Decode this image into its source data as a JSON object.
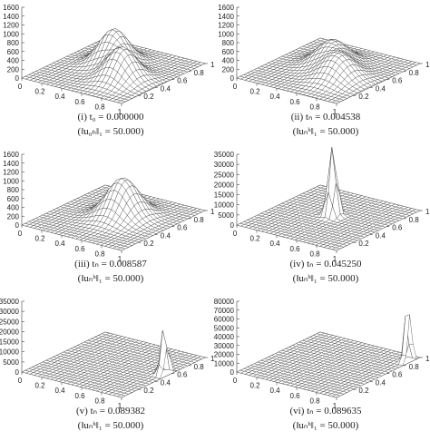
{
  "panels": [
    {
      "caption": "(i) t₀ = 0.000000",
      "norm": "(‖u₀ₕ‖₁ = 50.000)",
      "zticks": [
        0,
        200,
        400,
        600,
        800,
        1000,
        1200,
        1400,
        1600
      ],
      "xticks": [
        0,
        0.2,
        0.4,
        0.6,
        0.8,
        1
      ],
      "yticks": [
        0.2,
        0.4,
        0.6,
        0.8,
        1
      ]
    },
    {
      "caption": "(ii) tₙ = 0.004538",
      "norm": "(‖uₙʰ‖₁ = 50.000)",
      "zticks": [
        0,
        200,
        400,
        600,
        800,
        1000,
        1200,
        1400,
        1600
      ],
      "xticks": [
        0,
        0.2,
        0.4,
        0.6,
        0.8,
        1
      ],
      "yticks": [
        0.2,
        0.4,
        0.6,
        0.8,
        1
      ]
    },
    {
      "caption": "(iii) tₙ = 0.008587",
      "norm": "(‖uₙʰ‖₁ = 50.000)",
      "zticks": [
        0,
        200,
        400,
        600,
        800,
        1000,
        1200,
        1400,
        1600
      ],
      "xticks": [
        0,
        0.2,
        0.4,
        0.6,
        0.8,
        1
      ],
      "yticks": [
        0.2,
        0.4,
        0.6,
        0.8,
        1
      ]
    },
    {
      "caption": "(iv) tₙ = 0.045250",
      "norm": "(‖uₙʰ‖₁ = 50.000)",
      "zticks": [
        0,
        5000,
        10000,
        15000,
        20000,
        25000,
        30000,
        35000
      ],
      "xticks": [
        0,
        0.2,
        0.4,
        0.6,
        0.8,
        1
      ],
      "yticks": [
        0.2,
        0.4,
        0.6,
        0.8,
        1
      ]
    },
    {
      "caption": "(v) tₙ = 0.089382",
      "norm": "(‖uₙʰ‖₁ = 50.000)",
      "zticks": [
        0,
        5000,
        10000,
        15000,
        20000,
        25000,
        30000,
        35000
      ],
      "xticks": [
        0,
        0.2,
        0.4,
        0.6,
        0.8,
        1
      ],
      "yticks": [
        0.2,
        0.4,
        0.6,
        0.8,
        1
      ]
    },
    {
      "caption": "(vi) tₙ = 0.089635",
      "norm": "(‖uₙʰ‖₁ = 50.000)",
      "zticks": [
        0,
        10000,
        20000,
        30000,
        40000,
        50000,
        60000,
        70000,
        80000
      ],
      "xticks": [
        0,
        0.2,
        0.4,
        0.6,
        0.8,
        1
      ],
      "yticks": [
        0.2,
        0.4,
        0.6,
        0.8,
        1
      ]
    }
  ]
}
